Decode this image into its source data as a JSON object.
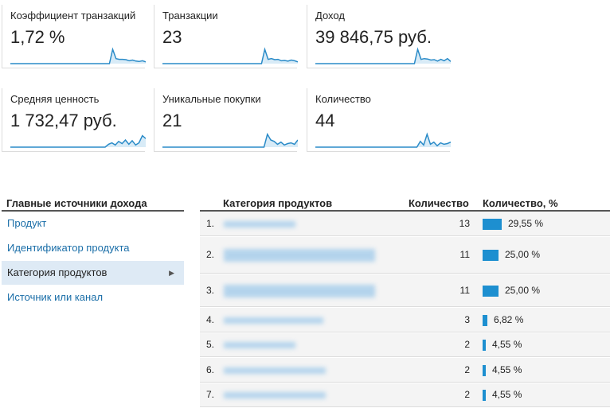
{
  "metrics": [
    {
      "label": "Коэффициент транзакций",
      "value": "1,72 %",
      "spark": [
        0,
        0,
        0,
        0,
        0,
        0,
        0,
        0,
        0,
        0,
        0,
        0,
        0,
        0,
        0,
        0,
        0,
        0,
        0,
        0,
        0,
        0,
        0,
        0,
        0,
        0,
        0,
        0,
        0,
        0,
        0,
        1,
        0.35,
        0.3,
        0.3,
        0.28,
        0.2,
        0.25,
        0.18,
        0.15,
        0.2,
        0.12
      ]
    },
    {
      "label": "Транзакции",
      "value": "23",
      "spark": [
        0,
        0,
        0,
        0,
        0,
        0,
        0,
        0,
        0,
        0,
        0,
        0,
        0,
        0,
        0,
        0,
        0,
        0,
        0,
        0,
        0,
        0,
        0,
        0,
        0,
        0,
        0,
        0,
        0,
        0,
        0,
        1,
        0.3,
        0.35,
        0.28,
        0.3,
        0.2,
        0.22,
        0.18,
        0.25,
        0.2,
        0.12
      ]
    },
    {
      "label": "Доход",
      "value": "39 846,75 руб.",
      "spark": [
        0,
        0,
        0,
        0,
        0,
        0,
        0,
        0,
        0,
        0,
        0,
        0,
        0,
        0,
        0,
        0,
        0,
        0,
        0,
        0,
        0,
        0,
        0,
        0,
        0,
        0,
        0,
        0,
        0,
        0,
        0,
        1,
        0.3,
        0.35,
        0.32,
        0.25,
        0.28,
        0.18,
        0.3,
        0.2,
        0.35,
        0.15
      ]
    },
    {
      "label": "Средняя ценность",
      "value": "1 732,47 руб.",
      "spark": [
        0,
        0,
        0,
        0,
        0,
        0,
        0,
        0,
        0,
        0,
        0,
        0,
        0,
        0,
        0,
        0,
        0,
        0,
        0,
        0,
        0,
        0,
        0,
        0,
        0,
        0,
        0,
        0,
        0,
        0.2,
        0.3,
        0.15,
        0.4,
        0.25,
        0.5,
        0.2,
        0.45,
        0.15,
        0.3,
        0.8,
        0.6
      ]
    },
    {
      "label": "Уникальные покупки",
      "value": "21",
      "spark": [
        0,
        0,
        0,
        0,
        0,
        0,
        0,
        0,
        0,
        0,
        0,
        0,
        0,
        0,
        0,
        0,
        0,
        0,
        0,
        0,
        0,
        0,
        0,
        0,
        0,
        0,
        0,
        0,
        0,
        0,
        0,
        0.9,
        0.5,
        0.4,
        0.2,
        0.35,
        0.15,
        0.25,
        0.3,
        0.2,
        0.5
      ]
    },
    {
      "label": "Количество",
      "value": "44",
      "spark": [
        0,
        0,
        0,
        0,
        0,
        0,
        0,
        0,
        0,
        0,
        0,
        0,
        0,
        0,
        0,
        0,
        0,
        0,
        0,
        0,
        0,
        0,
        0,
        0,
        0,
        0,
        0,
        0,
        0,
        0,
        0,
        0.4,
        0.15,
        0.9,
        0.2,
        0.35,
        0.1,
        0.3,
        0.2,
        0.25,
        0.35
      ]
    }
  ],
  "nav": {
    "title": "Главные источники дохода",
    "items": [
      "Продукт",
      "Идентификатор продукта",
      "Категория продуктов",
      "Источник или канал"
    ]
  },
  "table": {
    "headers": {
      "category": "Категория продуктов",
      "qty": "Количество",
      "pct": "Количество, %"
    },
    "rows": [
      {
        "idx": "1.",
        "qty": "13",
        "pct_label": "29,55 %",
        "pct": 29.55
      },
      {
        "idx": "2.",
        "qty": "11",
        "pct_label": "25,00 %",
        "pct": 25.0
      },
      {
        "idx": "3.",
        "qty": "11",
        "pct_label": "25,00 %",
        "pct": 25.0
      },
      {
        "idx": "4.",
        "qty": "3",
        "pct_label": "6,82 %",
        "pct": 6.82
      },
      {
        "idx": "5.",
        "qty": "2",
        "pct_label": "4,55 %",
        "pct": 4.55
      },
      {
        "idx": "6.",
        "qty": "2",
        "pct_label": "4,55 %",
        "pct": 4.55
      },
      {
        "idx": "7.",
        "qty": "2",
        "pct_label": "4,55 %",
        "pct": 4.55
      }
    ]
  },
  "colors": {
    "accent": "#1d8fd0",
    "spark": "#2a8bc8",
    "link": "#1a6ea8"
  }
}
